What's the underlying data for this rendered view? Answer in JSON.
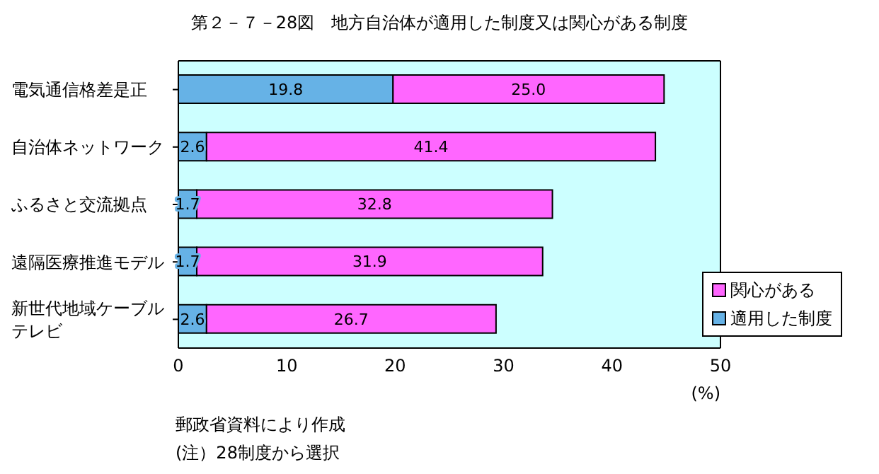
{
  "chart_data": {
    "type": "bar",
    "orientation": "horizontal",
    "stacked": true,
    "title": "第２－７－28図　地方自治体が適用した制度又は関心がある制度",
    "categories": [
      "電気通信格差是正",
      "自治体ネットワーク",
      "ふるさと交流拠点",
      "遠隔医療推進モデル",
      "新世代地域ケーブルテレビ"
    ],
    "series": [
      {
        "name": "適用した制度",
        "color": "#66b2e6",
        "values": [
          19.8,
          2.6,
          1.7,
          1.7,
          2.6
        ],
        "value_labels": [
          "19.8",
          "2.6",
          "1.7",
          "1.7",
          "2.6"
        ]
      },
      {
        "name": "関心がある",
        "color": "#ff66ff",
        "values": [
          25.0,
          41.4,
          32.8,
          31.9,
          26.7
        ],
        "value_labels": [
          "25.0",
          "41.4",
          "32.8",
          "31.9",
          "26.7"
        ]
      }
    ],
    "xlim": [
      0,
      50
    ],
    "xticks": [
      0,
      10,
      20,
      30,
      40,
      50
    ],
    "xlabel": "(%)",
    "grid": false,
    "legend": "bottom right",
    "annotations": [
      "郵政省資料により作成",
      "(注）28制度から選択"
    ]
  }
}
